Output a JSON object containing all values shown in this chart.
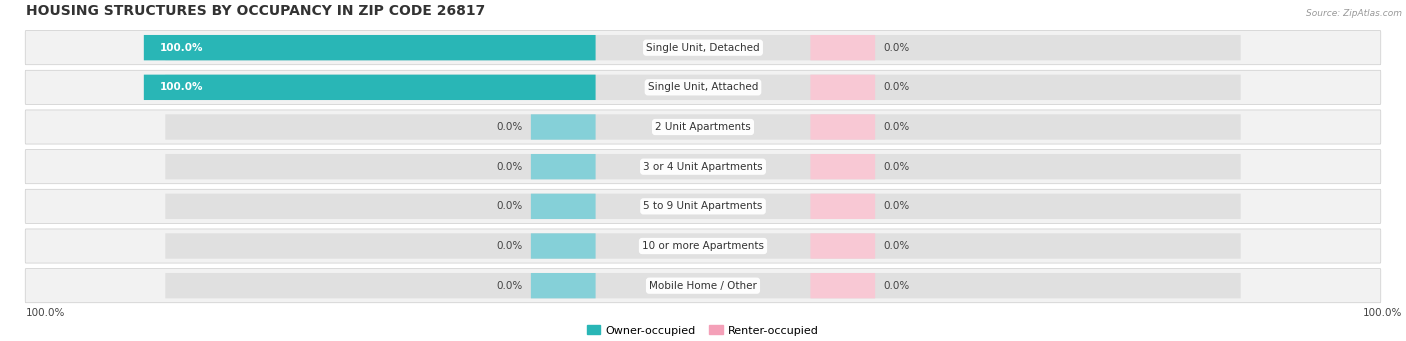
{
  "title": "HOUSING STRUCTURES BY OCCUPANCY IN ZIP CODE 26817",
  "source": "Source: ZipAtlas.com",
  "categories": [
    "Single Unit, Detached",
    "Single Unit, Attached",
    "2 Unit Apartments",
    "3 or 4 Unit Apartments",
    "5 to 9 Unit Apartments",
    "10 or more Apartments",
    "Mobile Home / Other"
  ],
  "owner_values": [
    100.0,
    100.0,
    0.0,
    0.0,
    0.0,
    0.0,
    0.0
  ],
  "renter_values": [
    0.0,
    0.0,
    0.0,
    0.0,
    0.0,
    0.0,
    0.0
  ],
  "owner_color": "#29b6b6",
  "renter_color": "#f4a0b8",
  "owner_stub_color": "#85d0d8",
  "renter_stub_color": "#f8c8d4",
  "figsize": [
    14.06,
    3.41
  ],
  "dpi": 100,
  "legend_owner_label": "Owner-occupied",
  "legend_renter_label": "Renter-occupied",
  "bottom_left_label": "100.0%",
  "bottom_right_label": "100.0%"
}
